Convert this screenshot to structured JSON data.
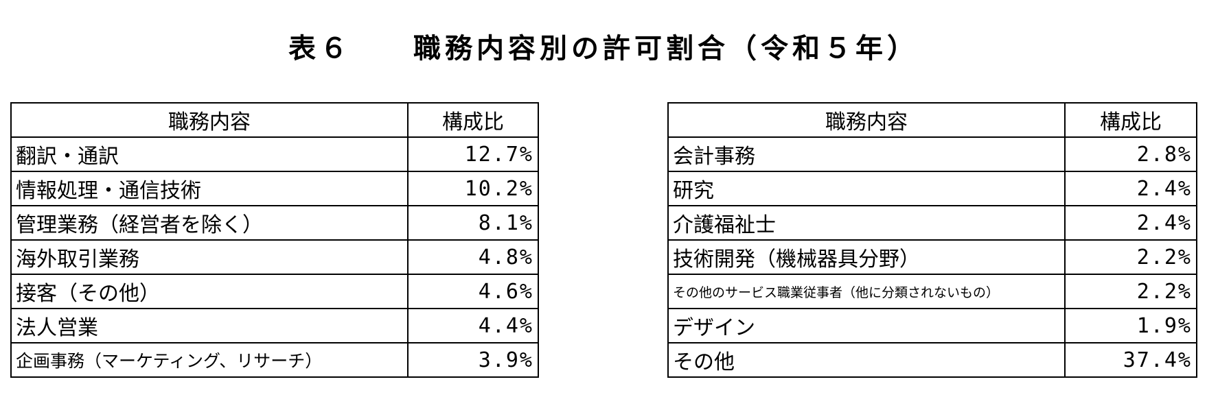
{
  "title": {
    "number": "表６",
    "text": "職務内容別の許可割合（令和５年）"
  },
  "headers": {
    "job": "職務内容",
    "ratio": "構成比"
  },
  "left_rows": [
    {
      "job": "翻訳・通訳",
      "ratio": "12.7%"
    },
    {
      "job": "情報処理・通信技術",
      "ratio": "10.2%"
    },
    {
      "job": "管理業務（経営者を除く）",
      "ratio": "8.1%"
    },
    {
      "job": "海外取引業務",
      "ratio": "4.8%"
    },
    {
      "job": "接客（その他）",
      "ratio": "4.6%"
    },
    {
      "job": "法人営業",
      "ratio": "4.4%"
    },
    {
      "job": "企画事務（マーケティング、リサーチ）",
      "ratio": "3.9%"
    }
  ],
  "right_rows": [
    {
      "job": "会計事務",
      "ratio": "2.8%"
    },
    {
      "job": "研究",
      "ratio": "2.4%"
    },
    {
      "job": "介護福祉士",
      "ratio": "2.4%"
    },
    {
      "job": "技術開発（機械器具分野）",
      "ratio": "2.2%"
    },
    {
      "job": "その他のサービス職業従事者（他に分類されないもの）",
      "ratio": "2.2%"
    },
    {
      "job": "デザイン",
      "ratio": "1.9%"
    },
    {
      "job": "その他",
      "ratio": "37.4%"
    }
  ]
}
